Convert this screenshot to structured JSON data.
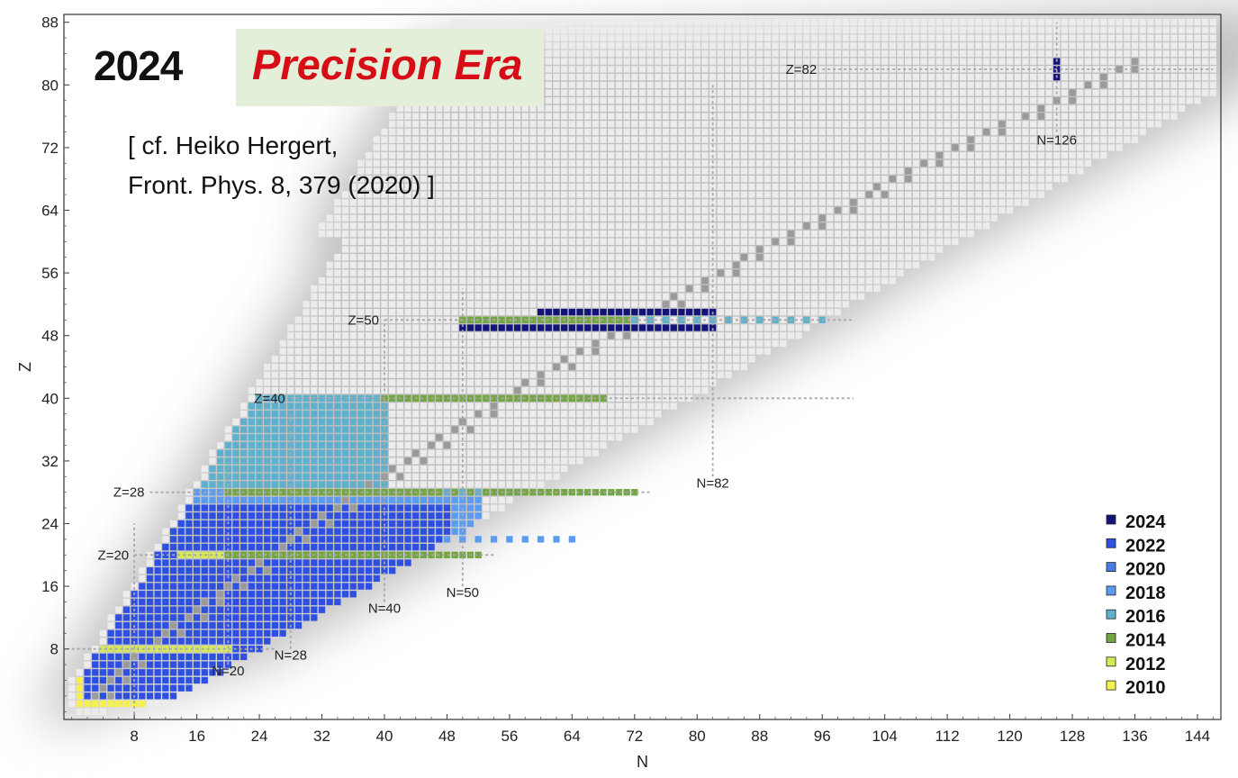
{
  "header": {
    "year": "2024",
    "title": "Precision Era",
    "citation_line1": "[ cf. Heiko Hergert,",
    "citation_line2": "Front. Phys. 8, 379 (2020) ]"
  },
  "chart_data": {
    "type": "heatmap",
    "xlabel": "N",
    "ylabel": "Z",
    "xlim": [
      -1,
      147
    ],
    "ylim": [
      -1,
      89
    ],
    "xticks": [
      8,
      16,
      24,
      32,
      40,
      48,
      56,
      64,
      72,
      80,
      88,
      96,
      104,
      112,
      120,
      128,
      136,
      144
    ],
    "yticks": [
      8,
      16,
      24,
      32,
      40,
      48,
      56,
      64,
      72,
      80,
      88
    ],
    "grid": false,
    "legend_position": "bottom-right",
    "legend": [
      {
        "label": "2024",
        "color": "#13137a"
      },
      {
        "label": "2022",
        "color": "#2f4fe0"
      },
      {
        "label": "2020",
        "color": "#4a7ae8"
      },
      {
        "label": "2018",
        "color": "#5c9cf0"
      },
      {
        "label": "2016",
        "color": "#5fb0cd"
      },
      {
        "label": "2014",
        "color": "#72a640"
      },
      {
        "label": "2012",
        "color": "#d6ea55"
      },
      {
        "label": "2010",
        "color": "#f6f04d"
      }
    ],
    "chart_colors": {
      "chart_of_nuclides": "#ececec",
      "stable_nuclei": "#9a9a9a",
      "magic_lines": "#a8a8a8"
    },
    "magic_labels": [
      {
        "text": "Z=20",
        "axis": "Z",
        "value": 20
      },
      {
        "text": "Z=28",
        "axis": "Z",
        "value": 28
      },
      {
        "text": "Z=40",
        "axis": "Z",
        "value": 40
      },
      {
        "text": "Z=50",
        "axis": "Z",
        "value": 50
      },
      {
        "text": "Z=82",
        "axis": "Z",
        "value": 82
      },
      {
        "text": "N=20",
        "axis": "N",
        "value": 20
      },
      {
        "text": "N=28",
        "axis": "N",
        "value": 28
      },
      {
        "text": "N=40",
        "axis": "N",
        "value": 40
      },
      {
        "text": "N=50",
        "axis": "N",
        "value": 50
      },
      {
        "text": "N=82",
        "axis": "N",
        "value": 82
      },
      {
        "text": "N=126",
        "axis": "N",
        "value": 126
      }
    ],
    "magic_lines": [
      {
        "axis": "Z",
        "value": 8,
        "from": 0,
        "to": 26
      },
      {
        "axis": "Z",
        "value": 20,
        "from": 8,
        "to": 54
      },
      {
        "axis": "Z",
        "value": 28,
        "from": 10,
        "to": 74
      },
      {
        "axis": "Z",
        "value": 40,
        "from": 28,
        "to": 100
      },
      {
        "axis": "Z",
        "value": 50,
        "from": 40,
        "to": 100
      },
      {
        "axis": "Z",
        "value": 82,
        "from": 96,
        "to": 146
      },
      {
        "axis": "N",
        "value": 8,
        "from": -1,
        "to": 24
      },
      {
        "axis": "N",
        "value": 20,
        "from": 6,
        "to": 32
      },
      {
        "axis": "N",
        "value": 28,
        "from": 8,
        "to": 38
      },
      {
        "axis": "N",
        "value": 40,
        "from": 14,
        "to": 50
      },
      {
        "axis": "N",
        "value": 50,
        "from": 16,
        "to": 54
      },
      {
        "axis": "N",
        "value": 82,
        "from": 30,
        "to": 80
      },
      {
        "axis": "N",
        "value": 126,
        "from": 74,
        "to": 88
      }
    ],
    "calculated_regions": [
      {
        "year": "2010",
        "zmin": 1,
        "zmax": 10,
        "nmin": 1,
        "nmax": 9
      },
      {
        "year": "2016",
        "zmin": 8,
        "zmax": 40,
        "nmin": 7,
        "nmax": 40
      },
      {
        "year": "2018",
        "zmin": 20,
        "zmax": 28,
        "nmin": 14,
        "nmax": 52
      },
      {
        "year": "2020",
        "zmin": 14,
        "zmax": 26,
        "nmin": 12,
        "nmax": 48
      },
      {
        "year": "2022",
        "zmin": 2,
        "zmax": 26,
        "nmin": 2,
        "nmax": 48
      }
    ],
    "calculated_chains": [
      {
        "year": "2012",
        "z": 8,
        "nmin": 4,
        "nmax": 20
      },
      {
        "year": "2012",
        "z": 20,
        "nmin": 14,
        "nmax": 40
      },
      {
        "year": "2014",
        "z": 20,
        "nmin": 20,
        "nmax": 52
      },
      {
        "year": "2014",
        "z": 28,
        "nmin": 20,
        "nmax": 72
      },
      {
        "year": "2014",
        "z": 40,
        "nmin": 40,
        "nmax": 68
      },
      {
        "year": "2014",
        "z": 50,
        "nmin": 50,
        "nmax": 72
      },
      {
        "year": "2016",
        "z": 50,
        "nmin": 72,
        "nmax": 96
      },
      {
        "year": "2016",
        "z": 28,
        "nmin": 48,
        "nmax": 52
      },
      {
        "year": "2018",
        "z": 22,
        "nmin": 48,
        "nmax": 64
      },
      {
        "year": "2024",
        "z": 49,
        "nmin": 50,
        "nmax": 82
      },
      {
        "year": "2024",
        "z": 51,
        "nmin": 60,
        "nmax": 82
      },
      {
        "year": "2024",
        "z": 82,
        "nmin": 126,
        "nmax": 126
      },
      {
        "year": "2024",
        "z": 81,
        "nmin": 126,
        "nmax": 126
      },
      {
        "year": "2024",
        "z": 83,
        "nmin": 126,
        "nmax": 126
      }
    ]
  }
}
